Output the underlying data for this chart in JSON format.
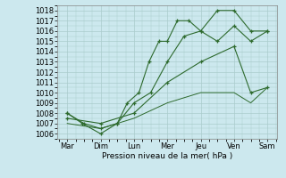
{
  "xlabel": "Pression niveau de la mer( hPa )",
  "xtick_labels": [
    "Mar",
    "Dim",
    "Lun",
    "Mer",
    "Jeu",
    "Ven",
    "Sam"
  ],
  "ylim": [
    1005.5,
    1018.5
  ],
  "background_color": "#cce8ee",
  "grid_color": "#aacccc",
  "line_color": "#2d6a2d",
  "line1_x": [
    0,
    0.45,
    1.0,
    1.5,
    1.8,
    2.15,
    2.45,
    2.75,
    3.0,
    3.3,
    3.65,
    4.0,
    4.5,
    5.0,
    5.5,
    6.0
  ],
  "line1_y": [
    1008,
    1007,
    1006,
    1007,
    1009,
    1010,
    1013,
    1015,
    1015,
    1017,
    1017,
    1016,
    1018,
    1018,
    1016,
    1016
  ],
  "line2_x": [
    0,
    0.5,
    1.0,
    1.5,
    2.0,
    2.5,
    3.0,
    3.5,
    4.0,
    4.5,
    5.0,
    5.5,
    6.0
  ],
  "line2_y": [
    1008,
    1007,
    1006.5,
    1007,
    1009,
    1010,
    1013,
    1015.5,
    1016,
    1015,
    1016.5,
    1015,
    1016
  ],
  "line3_x": [
    0,
    1.0,
    2.0,
    3.0,
    4.0,
    5.0,
    5.5,
    6.0
  ],
  "line3_y": [
    1007.5,
    1007,
    1008,
    1011,
    1013,
    1014.5,
    1010,
    1010.5
  ],
  "line4_x": [
    0,
    1.0,
    2.0,
    3.0,
    4.0,
    5.0,
    5.5,
    6.0
  ],
  "line4_y": [
    1007,
    1006.5,
    1007.5,
    1009,
    1010,
    1010,
    1009,
    1010.5
  ]
}
